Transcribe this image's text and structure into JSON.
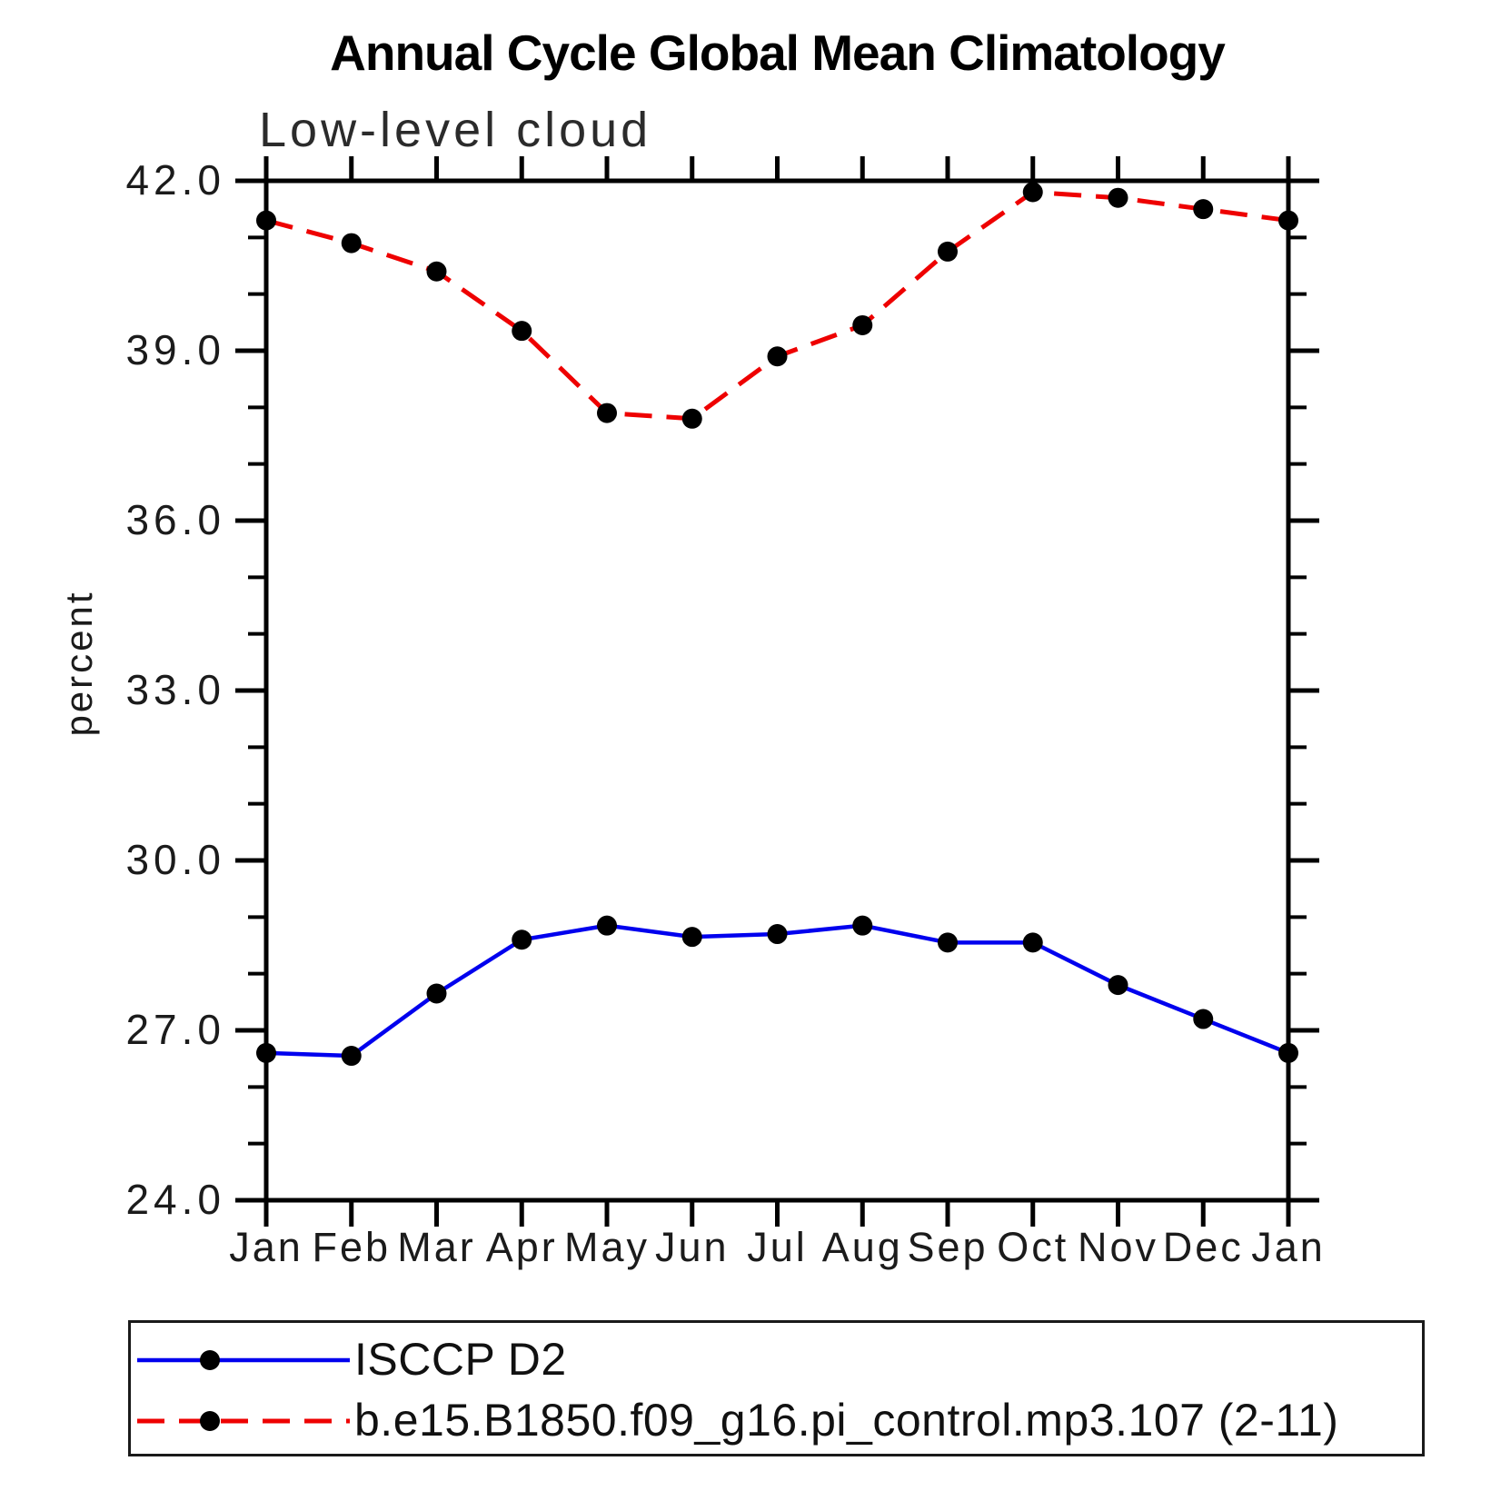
{
  "chart_data": {
    "type": "line",
    "title": "Annual Cycle Global Mean Climatology",
    "subtitle": "Low-level cloud",
    "xlabel": "",
    "ylabel": "percent",
    "x_categories": [
      "Jan",
      "Feb",
      "Mar",
      "Apr",
      "May",
      "Jun",
      "Jul",
      "Aug",
      "Sep",
      "Oct",
      "Nov",
      "Dec",
      "Jan"
    ],
    "ylim": [
      24.0,
      42.0
    ],
    "ytick_major_labels": [
      "42.0",
      "39.0",
      "36.0",
      "33.0",
      "30.0",
      "27.0",
      "24.0"
    ],
    "ytick_major_values": [
      42.0,
      39.0,
      36.0,
      33.0,
      30.0,
      27.0,
      24.0
    ],
    "ytick_minor_step": 1.0,
    "grid": false,
    "legend_position": "bottom-left-box",
    "axis_color": "#000000",
    "marker": "filled-circle",
    "marker_color": "#000000",
    "series": [
      {
        "name": "ISCCP D2",
        "color": "#0000ee",
        "line_style": "solid",
        "values": [
          26.6,
          26.55,
          27.65,
          28.6,
          28.85,
          28.65,
          28.7,
          28.85,
          28.55,
          28.55,
          27.8,
          27.2,
          26.6
        ]
      },
      {
        "name": "b.e15.B1850.f09_g16.pi_control.mp3.107 (2-11)",
        "color": "#ee0000",
        "line_style": "dashed",
        "values": [
          41.3,
          40.9,
          40.4,
          39.35,
          37.9,
          37.8,
          38.9,
          39.45,
          40.75,
          41.8,
          41.7,
          41.5,
          41.3
        ]
      }
    ]
  }
}
